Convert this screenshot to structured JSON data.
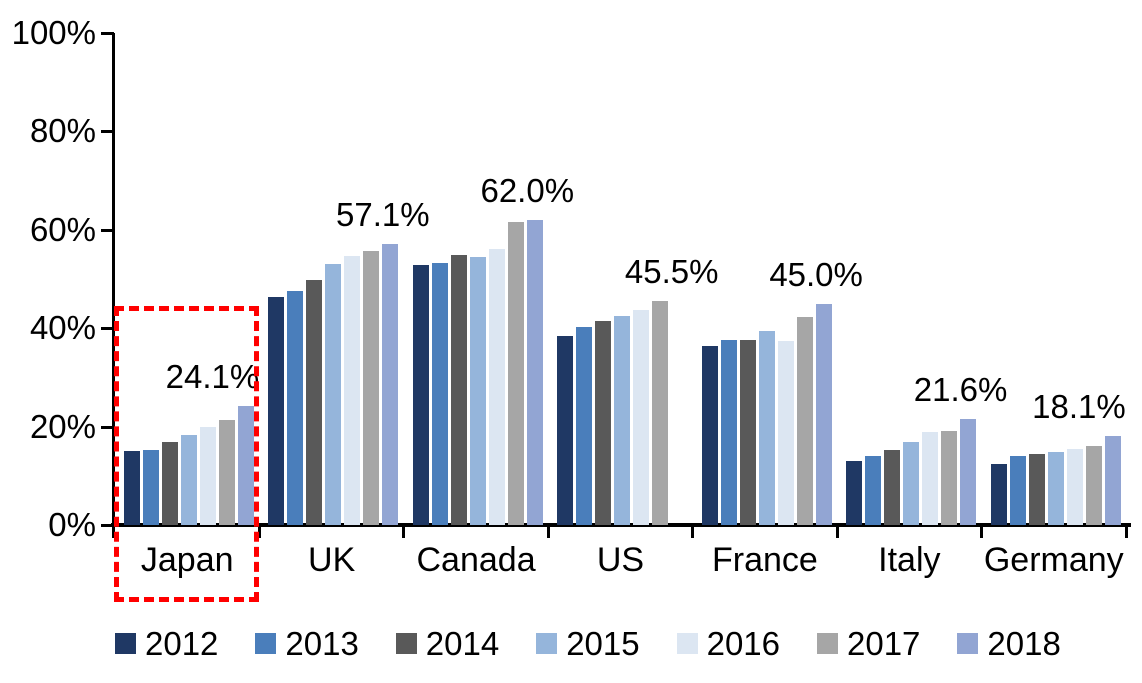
{
  "chart_data": {
    "type": "bar",
    "title": "",
    "categories": [
      "Japan",
      "UK",
      "Canada",
      "US",
      "France",
      "Italy",
      "Germany"
    ],
    "series": [
      {
        "name": "2012",
        "color": "#1F3864",
        "values": [
          15.1,
          46.3,
          52.8,
          38.4,
          36.4,
          13.0,
          12.4
        ]
      },
      {
        "name": "2013",
        "color": "#4A7EBB",
        "values": [
          15.3,
          47.6,
          53.2,
          40.2,
          37.7,
          14.0,
          14.0
        ]
      },
      {
        "name": "2014",
        "color": "#595959",
        "values": [
          16.9,
          49.8,
          54.9,
          41.5,
          37.7,
          15.2,
          14.4
        ]
      },
      {
        "name": "2015",
        "color": "#95B5DB",
        "values": [
          18.2,
          53.0,
          54.5,
          42.5,
          39.5,
          16.8,
          14.8
        ]
      },
      {
        "name": "2016",
        "color": "#DCE6F2",
        "values": [
          20.0,
          54.7,
          56.0,
          43.8,
          37.3,
          18.9,
          15.4
        ]
      },
      {
        "name": "2017",
        "color": "#A6A6A6",
        "values": [
          21.3,
          55.7,
          61.6,
          45.5,
          42.2,
          19.2,
          16.0
        ]
      },
      {
        "name": "2018",
        "color": "#92A5D3",
        "values": [
          24.1,
          57.1,
          62.0,
          null,
          45.0,
          21.6,
          18.1
        ]
      }
    ],
    "data_labels": [
      {
        "category": "Japan",
        "text": "24.1%",
        "align": "mid"
      },
      {
        "category": "UK",
        "text": "57.1%",
        "align": "right"
      },
      {
        "category": "Canada",
        "text": "62.0%",
        "align": "right"
      },
      {
        "category": "US",
        "text": "45.5%",
        "align": "right"
      },
      {
        "category": "France",
        "text": "45.0%",
        "align": "right"
      },
      {
        "category": "Italy",
        "text": "21.6%",
        "align": "right"
      },
      {
        "category": "Germany",
        "text": "18.1%",
        "align": "mid"
      }
    ],
    "yticks": [
      {
        "label": "0%",
        "value": 0
      },
      {
        "label": "20%",
        "value": 20
      },
      {
        "label": "40%",
        "value": 40
      },
      {
        "label": "60%",
        "value": 60
      },
      {
        "label": "80%",
        "value": 80
      },
      {
        "label": "100%",
        "value": 100
      }
    ],
    "ylim": [
      0,
      100
    ],
    "xlabel": "",
    "ylabel": "",
    "grid": false,
    "legend_position": "bottom",
    "axis_color": "#000000",
    "highlight_box": {
      "around_category": "Japan",
      "color": "#FF0000",
      "style": "dashed"
    }
  }
}
